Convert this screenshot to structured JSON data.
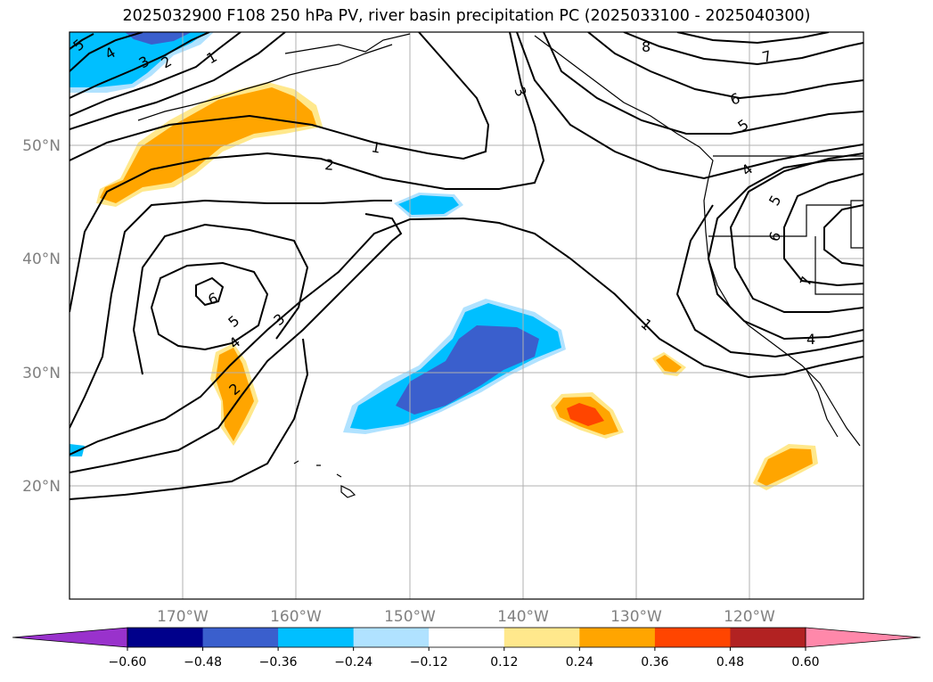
{
  "title": "2025032900 F108 250 hPa PV, river basin precipitation PC (2025033100 - 2025040300)",
  "map": {
    "lat_labels": [
      {
        "lat": 50,
        "label": "50°N"
      },
      {
        "lat": 40,
        "label": "40°N"
      },
      {
        "lat": 30,
        "label": "30°N"
      },
      {
        "lat": 20,
        "label": "20°N"
      }
    ],
    "lon_labels": [
      {
        "lon": -170,
        "label": "170°W"
      },
      {
        "lon": -160,
        "label": "160°W"
      },
      {
        "lon": -150,
        "label": "150°W"
      },
      {
        "lon": -140,
        "label": "140°W"
      },
      {
        "lon": -130,
        "label": "130°W"
      },
      {
        "lon": -120,
        "label": "120°W"
      }
    ],
    "pv_contour_labels": [
      "5",
      "4",
      "3",
      "2",
      "1",
      "1",
      "2",
      "3",
      "8",
      "7",
      "6",
      "5",
      "4",
      "5",
      "6",
      "7",
      "4",
      "1",
      "6",
      "5",
      "4",
      "3",
      "2"
    ]
  },
  "colorbar": {
    "ticks": [
      "−0.60",
      "−0.48",
      "−0.36",
      "−0.24",
      "−0.12",
      "0.12",
      "0.24",
      "0.36",
      "0.48",
      "0.60"
    ],
    "colors": {
      "under": "#9932cc",
      "bins": [
        "#00008b",
        "#3a5fcd",
        "#00bfff",
        "#b0e2ff",
        "#ffffff",
        "#ffe88c",
        "#ffa500",
        "#ff4500",
        "#b22222"
      ],
      "over": "#ff88aa"
    }
  }
}
